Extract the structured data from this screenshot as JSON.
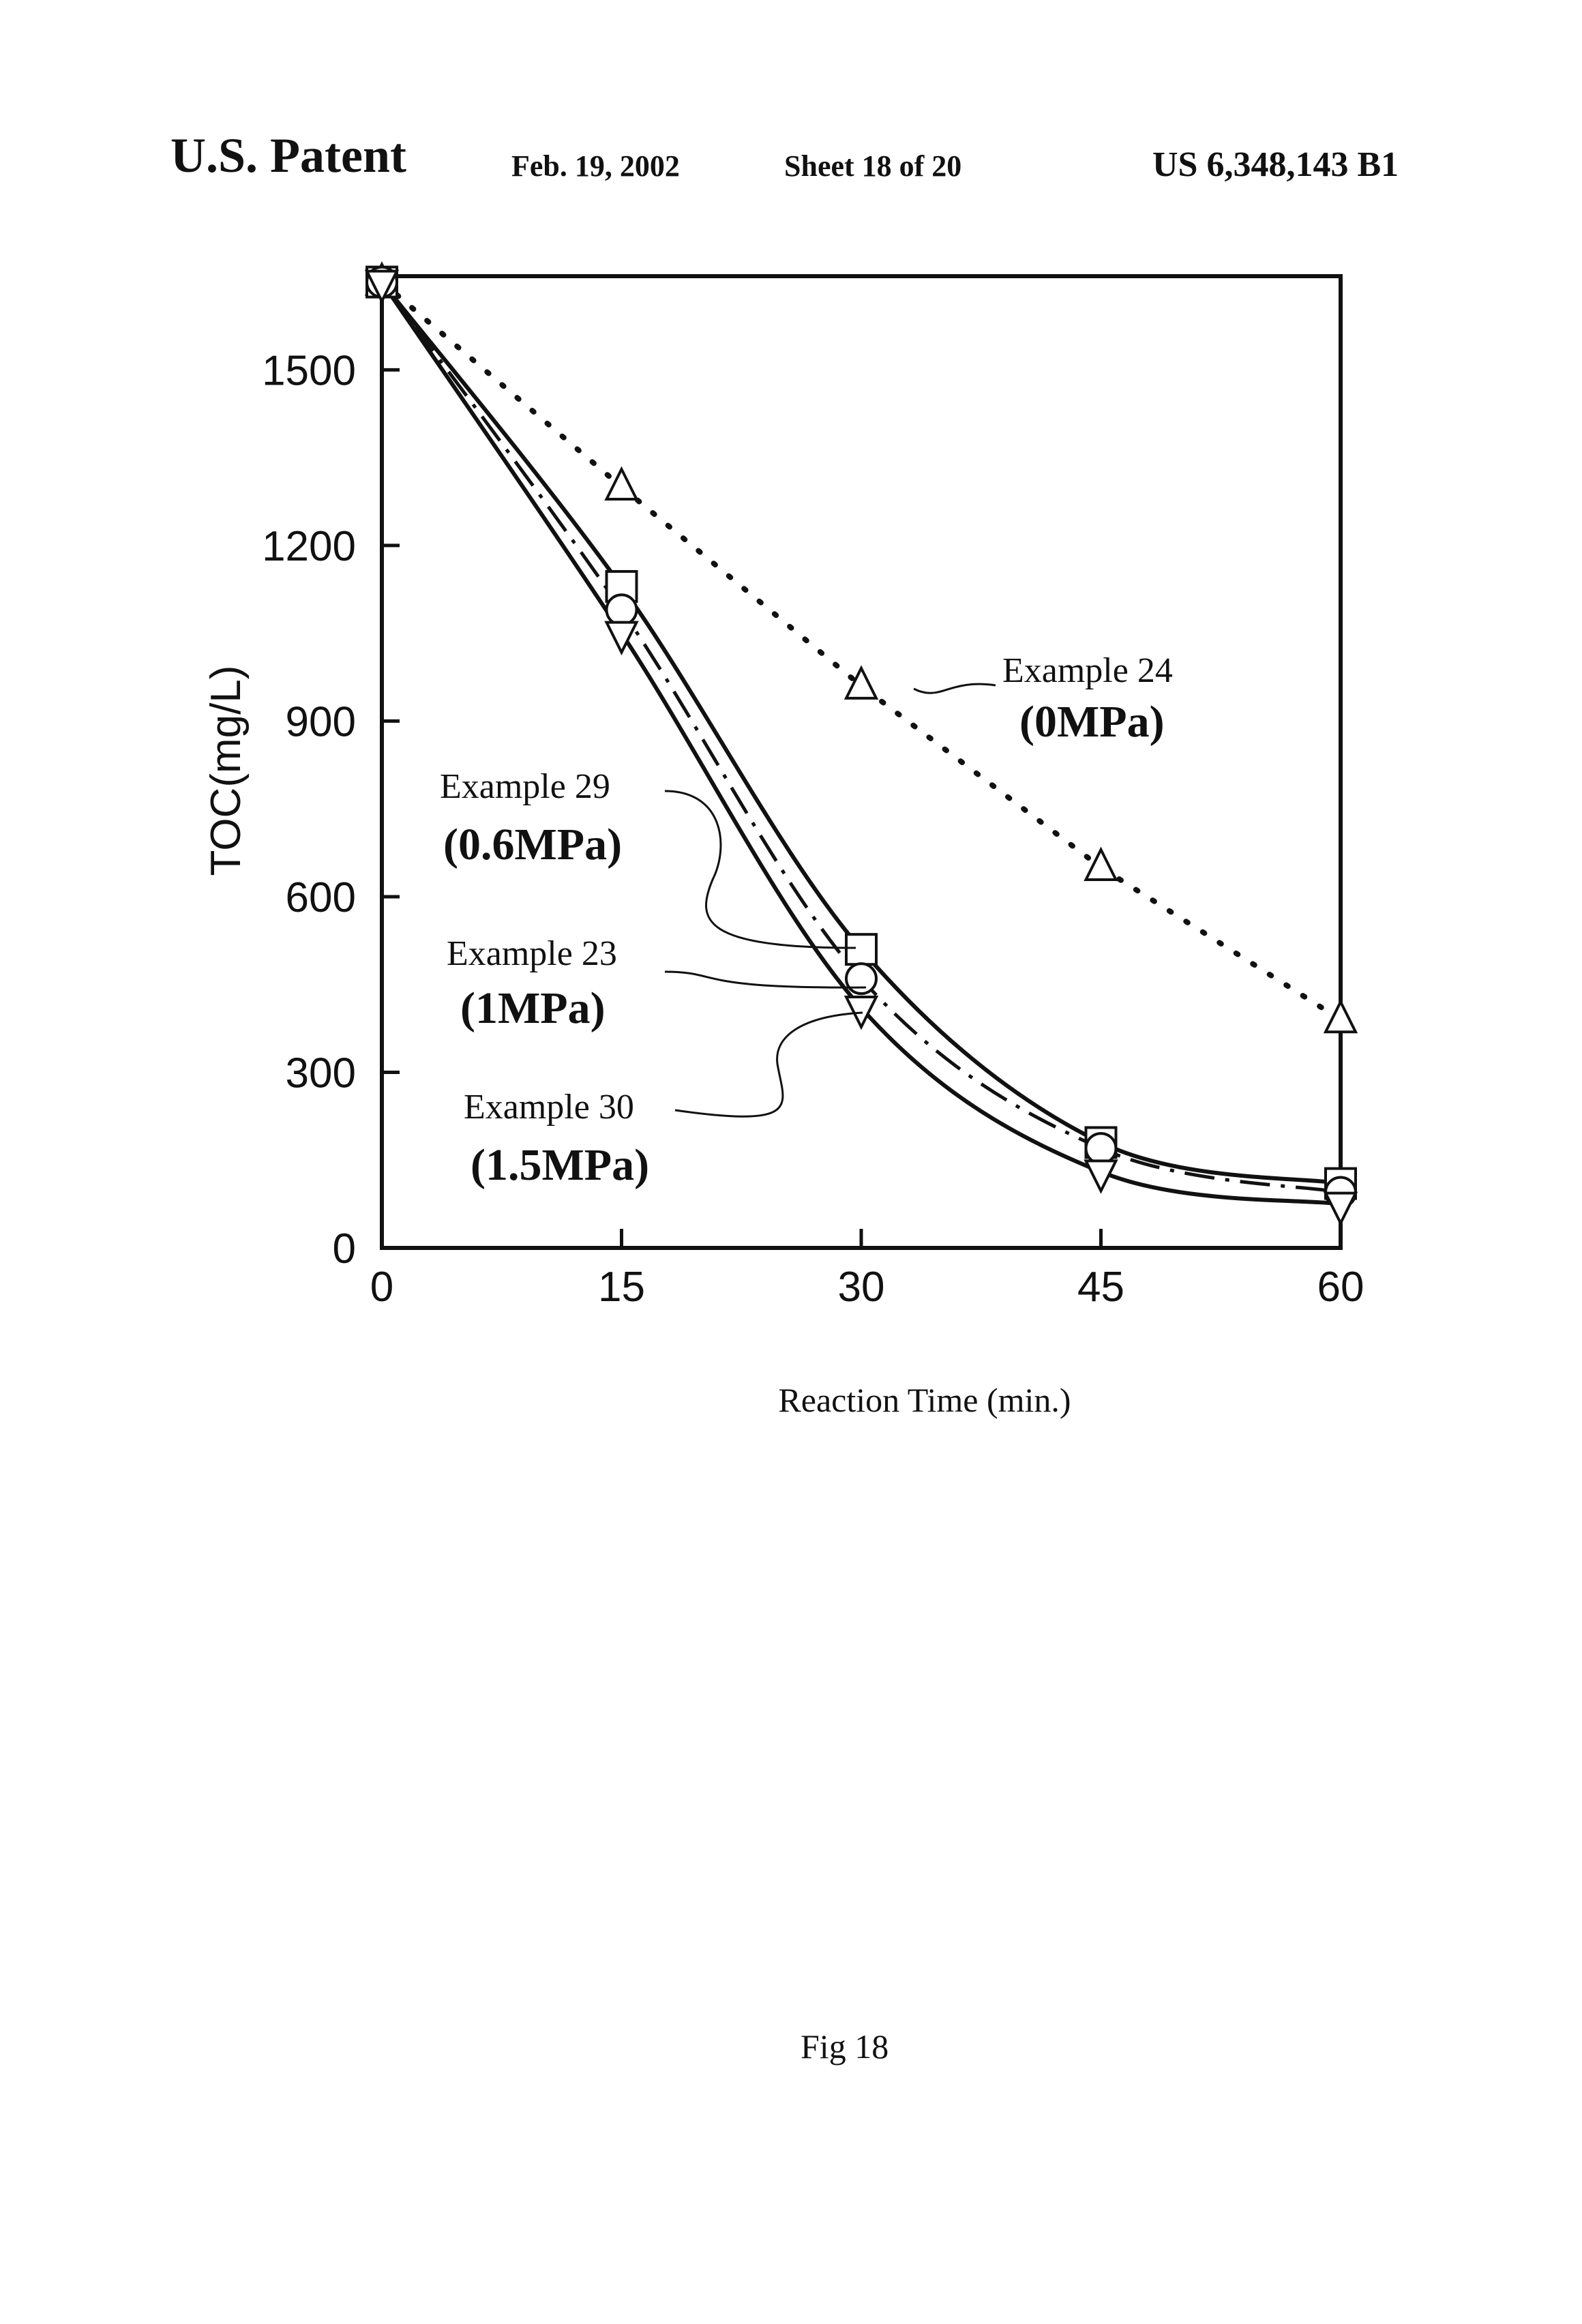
{
  "header": {
    "patent_label": "U.S. Patent",
    "date": "Feb. 19, 2002",
    "sheet": "Sheet 18 of 20",
    "patent_number": "US 6,348,143 B1"
  },
  "figure_label": "Fig 18",
  "chart_data": {
    "type": "line",
    "title": "",
    "xlabel": "Reaction Time (min.)",
    "ylabel": "TOC(mg/L)",
    "xlim": [
      0,
      60
    ],
    "ylim": [
      0,
      1660
    ],
    "x_ticks": [
      0,
      15,
      30,
      45,
      60
    ],
    "y_ticks": [
      0,
      300,
      600,
      900,
      1200,
      1500
    ],
    "grid": false,
    "x": [
      0,
      15,
      30,
      45,
      60
    ],
    "series": [
      {
        "name": "Example 24",
        "label_line2": "(0MPa)",
        "marker": "triangle-up",
        "line_style": "dotted",
        "values": [
          1650,
          1300,
          960,
          650,
          390
        ]
      },
      {
        "name": "Example 29",
        "label_line2": "(0.6MPa)",
        "marker": "square",
        "line_style": "solid",
        "values": [
          1650,
          1130,
          510,
          180,
          110
        ]
      },
      {
        "name": "Example 23",
        "label_line2": "(1MPa)",
        "marker": "circle",
        "line_style": "dash-dot",
        "values": [
          1650,
          1090,
          460,
          170,
          95
        ]
      },
      {
        "name": "Example 30",
        "label_line2": "(1.5MPa)",
        "marker": "triangle-down",
        "line_style": "solid",
        "values": [
          1650,
          1050,
          410,
          130,
          75
        ]
      }
    ]
  }
}
